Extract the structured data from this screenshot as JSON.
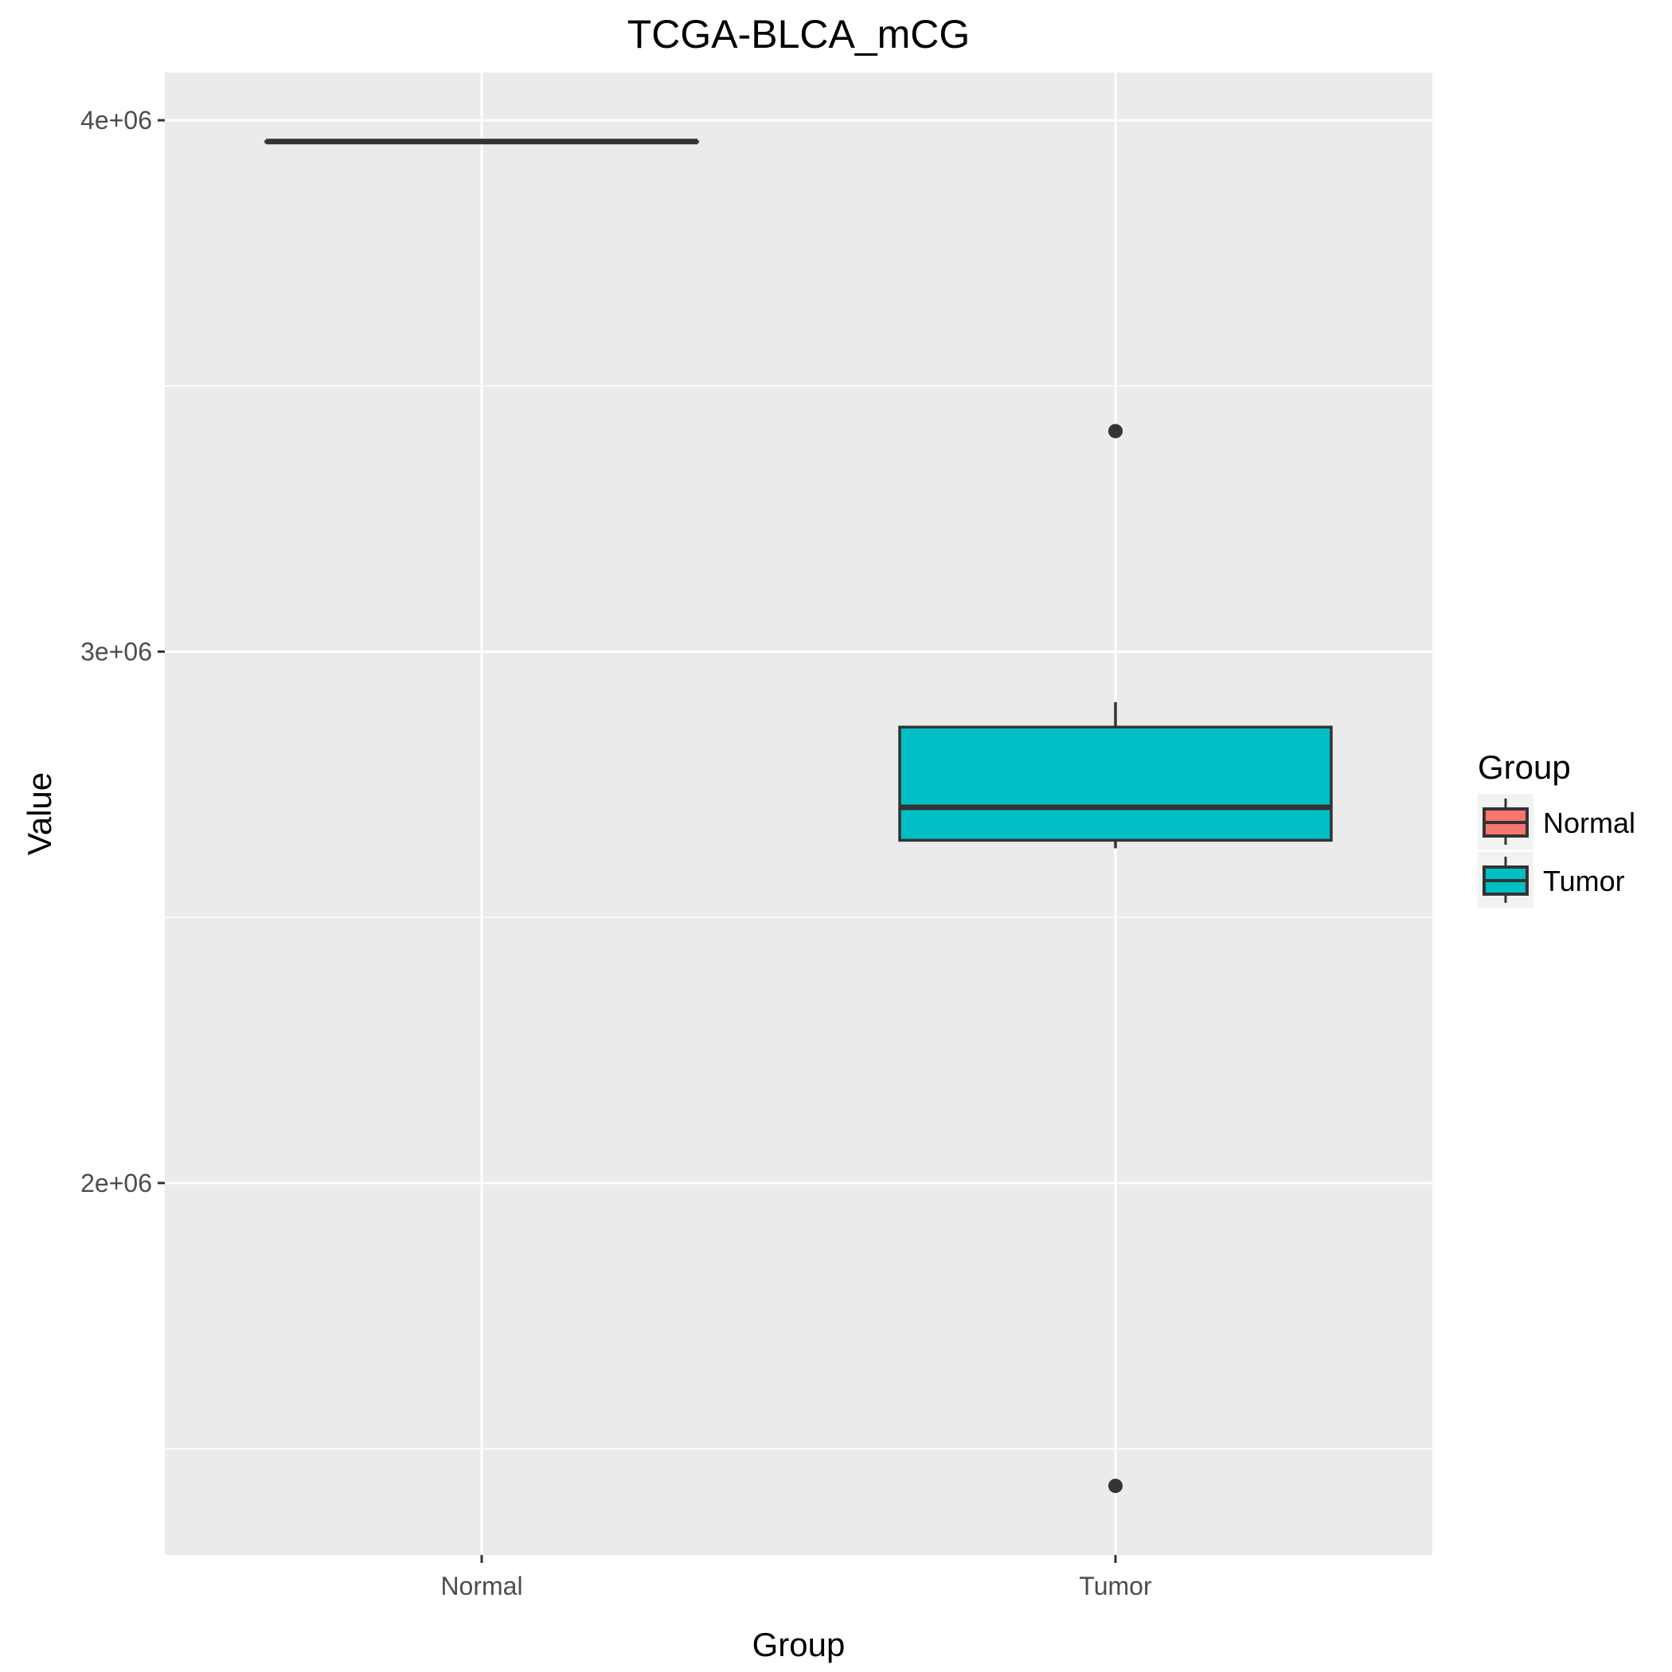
{
  "chart_data": {
    "type": "boxplot",
    "title": "TCGA-BLCA_mCG",
    "xlabel": "Group",
    "ylabel": "Value",
    "categories": [
      "Normal",
      "Tumor"
    ],
    "y_ticks": [
      {
        "value": 2000000,
        "label": "2e+06"
      },
      {
        "value": 3000000,
        "label": "3e+06"
      },
      {
        "value": 4000000,
        "label": "4e+06"
      }
    ],
    "ylim": [
      1300000,
      4090000
    ],
    "grid": true,
    "legend": {
      "title": "Group",
      "placement": "right",
      "entries": [
        {
          "label": "Normal",
          "color": "#F8766D"
        },
        {
          "label": "Tumor",
          "color": "#00BFC4"
        }
      ]
    },
    "series": [
      {
        "category": "Normal",
        "color": "#F8766D",
        "min": 3960000,
        "q1": 3960000,
        "median": 3960000,
        "q3": 3960000,
        "max": 3960000,
        "outliers": []
      },
      {
        "category": "Tumor",
        "color": "#00BFC4",
        "min": 2630000,
        "q1": 2645000,
        "median": 2707000,
        "q3": 2858000,
        "max": 2905000,
        "outliers": [
          3415000,
          1430000
        ]
      }
    ]
  }
}
